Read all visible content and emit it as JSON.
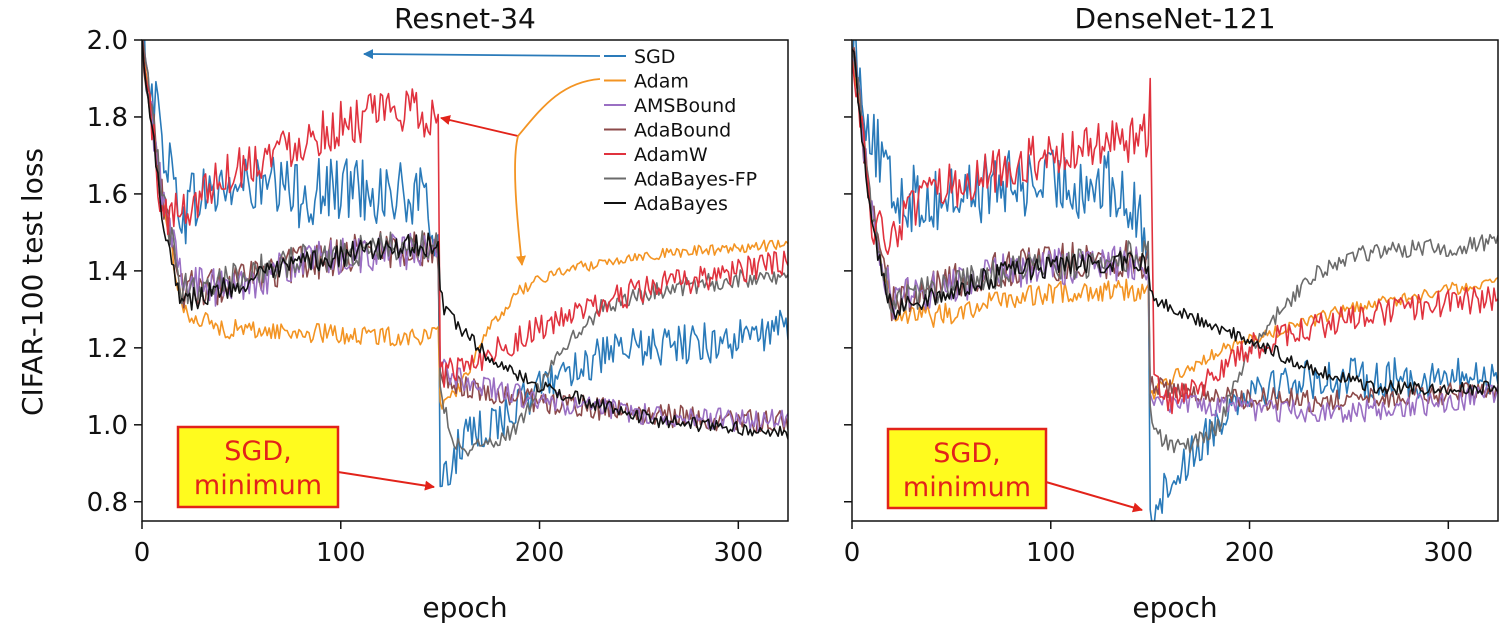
{
  "chart_data": [
    {
      "type": "line",
      "title": "Resnet-34",
      "xlabel": "epoch",
      "ylabel": "CIFAR-100 test loss",
      "xlim": [
        0,
        325
      ],
      "ylim": [
        0.75,
        2.0
      ],
      "xticks": [
        "0",
        "100",
        "200",
        "300"
      ],
      "yticks": [
        "0.8",
        "1.0",
        "1.2",
        "1.4",
        "1.6",
        "1.8",
        "2.0"
      ],
      "legend_position": "top-right",
      "series": [
        {
          "name": "SGD",
          "color": "#2a7ab9",
          "x": [
            0,
            10,
            20,
            30,
            50,
            80,
            110,
            140,
            149,
            150,
            152,
            160,
            175,
            190,
            200,
            215,
            250,
            300,
            325
          ],
          "y": [
            2.0,
            1.75,
            1.55,
            1.6,
            1.62,
            1.6,
            1.62,
            1.58,
            1.5,
            0.84,
            0.85,
            0.95,
            1.0,
            1.05,
            1.1,
            1.15,
            1.2,
            1.22,
            1.25
          ],
          "noise": 0.09
        },
        {
          "name": "Adam",
          "color": "#f39423",
          "x": [
            0,
            10,
            20,
            40,
            80,
            120,
            149,
            150,
            152,
            160,
            175,
            190,
            210,
            250,
            300,
            325
          ],
          "y": [
            2.0,
            1.6,
            1.3,
            1.25,
            1.24,
            1.23,
            1.23,
            1.06,
            1.05,
            1.1,
            1.25,
            1.35,
            1.4,
            1.44,
            1.46,
            1.47
          ],
          "noise": 0.025
        },
        {
          "name": "AMSBound",
          "color": "#9a6fc3",
          "x": [
            0,
            10,
            20,
            40,
            80,
            120,
            149,
            150,
            152,
            160,
            200,
            250,
            300,
            325
          ],
          "y": [
            2.0,
            1.6,
            1.38,
            1.35,
            1.42,
            1.45,
            1.45,
            1.15,
            1.14,
            1.12,
            1.06,
            1.03,
            1.01,
            1.01
          ],
          "noise": 0.05
        },
        {
          "name": "AdaBound",
          "color": "#8c4a4a",
          "x": [
            0,
            10,
            20,
            40,
            80,
            120,
            149,
            150,
            152,
            160,
            200,
            250,
            300,
            325
          ],
          "y": [
            2.0,
            1.6,
            1.35,
            1.36,
            1.42,
            1.46,
            1.45,
            1.14,
            1.13,
            1.1,
            1.06,
            1.03,
            1.01,
            1.01
          ],
          "noise": 0.05
        },
        {
          "name": "AdamW",
          "color": "#e0323e",
          "x": [
            0,
            10,
            20,
            40,
            70,
            100,
            130,
            149,
            150,
            152,
            160,
            180,
            200,
            250,
            300,
            325
          ],
          "y": [
            2.0,
            1.55,
            1.55,
            1.65,
            1.72,
            1.78,
            1.82,
            1.8,
            1.15,
            1.13,
            1.15,
            1.2,
            1.25,
            1.35,
            1.4,
            1.42
          ],
          "noise": 0.06
        },
        {
          "name": "AdaBayes-FP",
          "color": "#6b6b6b",
          "x": [
            0,
            10,
            20,
            40,
            80,
            120,
            149,
            150,
            152,
            155,
            160,
            175,
            190,
            205,
            230,
            260,
            300,
            325
          ],
          "y": [
            2.0,
            1.6,
            1.35,
            1.38,
            1.43,
            1.46,
            1.47,
            1.1,
            1.05,
            0.98,
            0.94,
            0.95,
            1.0,
            1.15,
            1.3,
            1.35,
            1.38,
            1.38
          ],
          "noise": 0.04
        },
        {
          "name": "AdaBayes",
          "color": "#111111",
          "x": [
            0,
            10,
            20,
            40,
            80,
            120,
            149,
            150,
            152,
            160,
            180,
            200,
            230,
            260,
            300,
            325
          ],
          "y": [
            2.0,
            1.55,
            1.32,
            1.35,
            1.42,
            1.46,
            1.47,
            1.35,
            1.3,
            1.25,
            1.15,
            1.1,
            1.05,
            1.01,
            0.99,
            0.98
          ],
          "noise": 0.03
        }
      ],
      "annotations": [
        {
          "text_lines": [
            "SGD,",
            "minimum"
          ],
          "points_to": {
            "x": 150,
            "y": 0.84
          }
        }
      ]
    },
    {
      "type": "line",
      "title": "DenseNet-121",
      "xlabel": "epoch",
      "ylabel": "CIFAR-100 test loss",
      "xlim": [
        0,
        325
      ],
      "ylim": [
        0.75,
        2.0
      ],
      "xticks": [
        "0",
        "100",
        "200",
        "300"
      ],
      "yticks": [
        "0.8",
        "1.0",
        "1.2",
        "1.4",
        "1.6",
        "1.8",
        "2.0"
      ],
      "series": [
        {
          "name": "SGD",
          "color": "#2a7ab9",
          "x": [
            0,
            10,
            20,
            40,
            70,
            100,
            130,
            149,
            150,
            152,
            160,
            175,
            190,
            200,
            230,
            260,
            300,
            325
          ],
          "y": [
            2.0,
            1.75,
            1.6,
            1.58,
            1.62,
            1.63,
            1.62,
            1.5,
            0.78,
            0.78,
            0.85,
            0.95,
            1.05,
            1.1,
            1.12,
            1.12,
            1.12,
            1.13
          ],
          "noise": 0.09
        },
        {
          "name": "Adam",
          "color": "#f39423",
          "x": [
            0,
            10,
            20,
            40,
            80,
            120,
            149,
            150,
            152,
            160,
            180,
            200,
            250,
            300,
            325
          ],
          "y": [
            2.0,
            1.55,
            1.3,
            1.28,
            1.33,
            1.35,
            1.35,
            1.08,
            1.08,
            1.12,
            1.18,
            1.22,
            1.3,
            1.35,
            1.38
          ],
          "noise": 0.03
        },
        {
          "name": "AMSBound",
          "color": "#9a6fc3",
          "x": [
            0,
            10,
            20,
            40,
            80,
            120,
            149,
            150,
            152,
            170,
            200,
            250,
            300,
            325
          ],
          "y": [
            2.0,
            1.55,
            1.32,
            1.35,
            1.4,
            1.42,
            1.42,
            1.08,
            1.07,
            1.05,
            1.04,
            1.03,
            1.06,
            1.08
          ],
          "noise": 0.05
        },
        {
          "name": "AdaBound",
          "color": "#8c4a4a",
          "x": [
            0,
            10,
            20,
            40,
            80,
            120,
            149,
            150,
            152,
            170,
            200,
            250,
            300,
            325
          ],
          "y": [
            2.0,
            1.55,
            1.32,
            1.36,
            1.41,
            1.43,
            1.43,
            1.1,
            1.1,
            1.08,
            1.07,
            1.06,
            1.08,
            1.1
          ],
          "noise": 0.05
        },
        {
          "name": "AdamW",
          "color": "#e0323e",
          "x": [
            0,
            10,
            20,
            40,
            80,
            120,
            149,
            150,
            152,
            155,
            160,
            180,
            200,
            250,
            300,
            325
          ],
          "y": [
            2.0,
            1.5,
            1.5,
            1.6,
            1.68,
            1.72,
            1.75,
            1.9,
            1.15,
            1.08,
            1.06,
            1.12,
            1.2,
            1.28,
            1.32,
            1.33
          ],
          "noise": 0.06
        },
        {
          "name": "AdaBayes-FP",
          "color": "#6b6b6b",
          "x": [
            0,
            10,
            20,
            40,
            80,
            120,
            149,
            150,
            152,
            155,
            160,
            170,
            185,
            200,
            230,
            260,
            300,
            325
          ],
          "y": [
            2.0,
            1.55,
            1.32,
            1.35,
            1.4,
            1.42,
            1.45,
            1.05,
            1.0,
            0.97,
            0.95,
            0.95,
            1.0,
            1.2,
            1.38,
            1.45,
            1.46,
            1.48
          ],
          "noise": 0.04
        },
        {
          "name": "AdaBayes",
          "color": "#111111",
          "x": [
            0,
            10,
            20,
            40,
            80,
            120,
            149,
            150,
            152,
            170,
            200,
            230,
            260,
            300,
            325
          ],
          "y": [
            2.0,
            1.5,
            1.3,
            1.33,
            1.4,
            1.42,
            1.42,
            1.35,
            1.33,
            1.28,
            1.22,
            1.15,
            1.1,
            1.09,
            1.1
          ],
          "noise": 0.03
        }
      ],
      "annotations": [
        {
          "text_lines": [
            "SGD,",
            "minimum"
          ],
          "points_to": {
            "x": 150,
            "y": 0.78
          }
        }
      ]
    }
  ]
}
